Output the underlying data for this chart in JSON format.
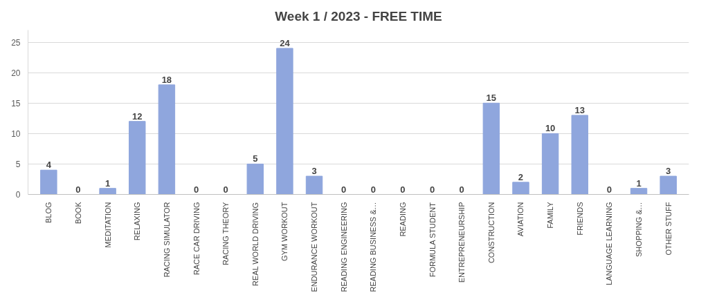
{
  "chart_data": {
    "type": "bar",
    "title": "Week 1 / 2023 - FREE TIME",
    "categories": [
      "BLOG",
      "BOOK",
      "MEDITATION",
      "RELAXING",
      "RACING SIMULATOR",
      "RACE CAR DRIVING",
      "RACING THEORY",
      "REAL WORLD DRIVING",
      "GYM WORKOUT",
      "ENDURANCE WORKOUT",
      "READING ENGINEERING",
      "READING BUSINESS &…",
      "READING",
      "FORMULA STUDENT",
      "ENTREPRENEURSHIP",
      "CONSTRUCTION",
      "AVIATION",
      "FAMILY",
      "FRIENDS",
      "LANGUAGE LEARNING",
      "SHOPPING &…",
      "OTHER STUFF"
    ],
    "values": [
      4,
      0,
      1,
      12,
      18,
      0,
      0,
      5,
      24,
      3,
      0,
      0,
      0,
      0,
      0,
      15,
      2,
      10,
      13,
      0,
      1,
      3
    ],
    "color": "#8fa6dd",
    "ylim": [
      0,
      27
    ],
    "yticks": [
      0,
      5,
      10,
      15,
      20,
      25
    ],
    "grid": "y",
    "data_labels": true
  }
}
